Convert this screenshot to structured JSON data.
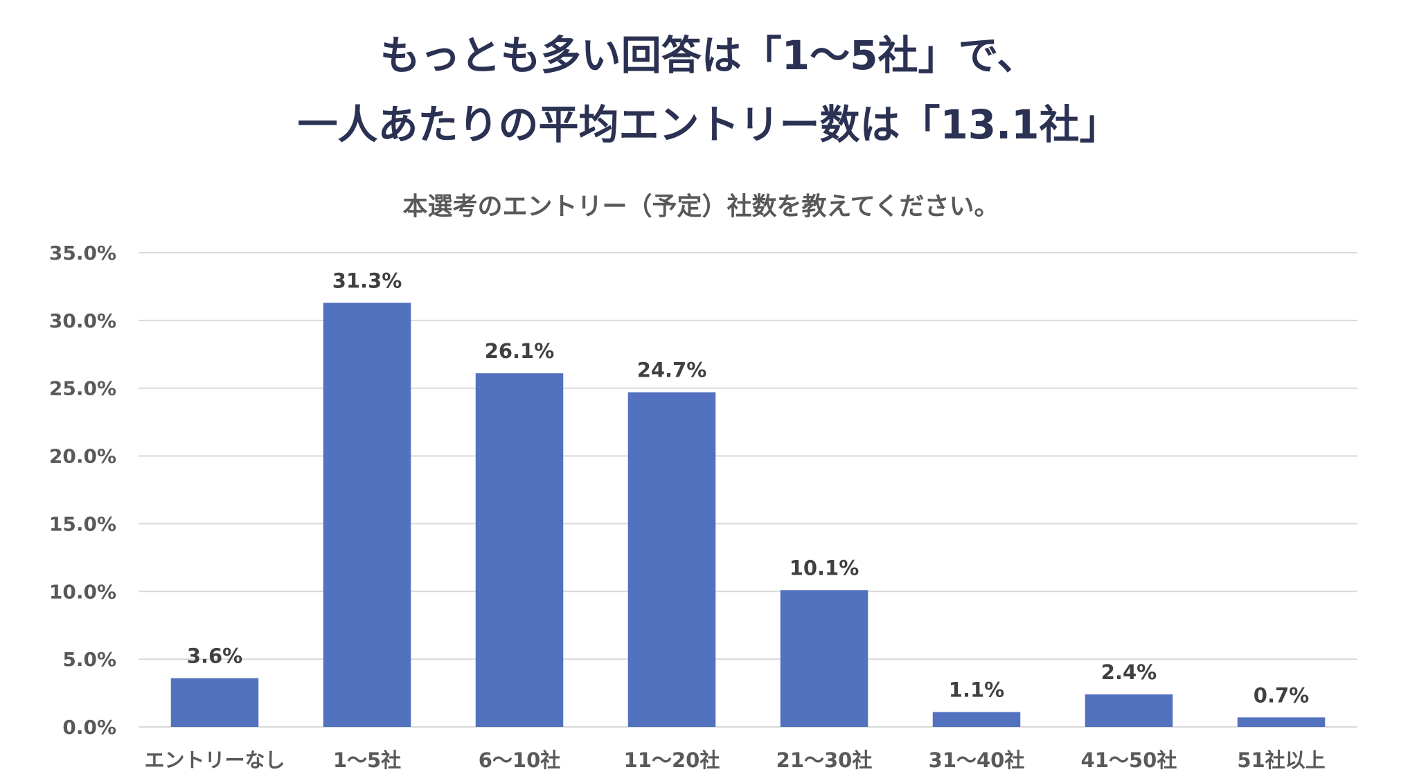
{
  "headline": {
    "line1": "もっとも多い回答は「1～5社」で、",
    "line2": "一人あたりの平均エントリー数は「13.1社」"
  },
  "colors": {
    "bar": "#5271bf",
    "grid": "#d9d9d9",
    "headline": "#2b3152"
  },
  "chart_data": {
    "type": "bar",
    "title": "本選考のエントリー（予定）社数を教えてください。",
    "xlabel": "",
    "ylabel": "",
    "categories": [
      "エントリーなし",
      "1～5社",
      "6～10社",
      "11～20社",
      "21～30社",
      "31～40社",
      "41～50社",
      "51社以上"
    ],
    "values": [
      3.6,
      31.3,
      26.1,
      24.7,
      10.1,
      1.1,
      2.4,
      0.7
    ],
    "data_labels": [
      "3.6%",
      "31.3%",
      "26.1%",
      "24.7%",
      "10.1%",
      "1.1%",
      "2.4%",
      "0.7%"
    ],
    "ylim": [
      0,
      35
    ],
    "yticks": [
      0,
      5,
      10,
      15,
      20,
      25,
      30,
      35
    ],
    "ytick_labels": [
      "0.0%",
      "5.0%",
      "10.0%",
      "15.0%",
      "20.0%",
      "25.0%",
      "30.0%",
      "35.0%"
    ],
    "grid": true,
    "legend": "none"
  }
}
